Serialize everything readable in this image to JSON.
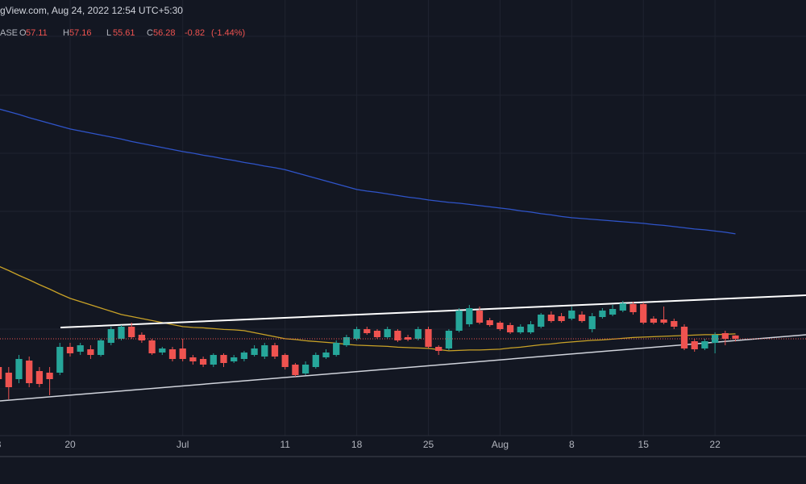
{
  "chart_data": {
    "type": "candlestick",
    "header": "gView.com, Aug 24, 2022 12:54 UTC+5:30",
    "symbol": "ASE",
    "ohlc_labels": [
      "O",
      "H",
      "L",
      "C"
    ],
    "change": -0.82,
    "change_pct": {
      "value": -1.44,
      "label": "(-1.44%)"
    },
    "categories": [
      "3",
      null,
      null,
      null,
      null,
      null,
      null,
      "20",
      null,
      null,
      null,
      null,
      null,
      null,
      null,
      null,
      null,
      null,
      "Jul",
      null,
      null,
      null,
      null,
      null,
      null,
      null,
      null,
      null,
      "11",
      null,
      null,
      null,
      null,
      null,
      null,
      "18",
      null,
      null,
      null,
      null,
      null,
      null,
      "25",
      null,
      null,
      null,
      null,
      null,
      null,
      "Aug",
      null,
      null,
      null,
      null,
      null,
      null,
      "8",
      null,
      null,
      null,
      null,
      null,
      null,
      "15",
      null,
      null,
      null,
      null,
      null,
      null,
      "22",
      null,
      null
    ],
    "open": [
      49.28,
      47.88,
      46.28,
      50.88,
      48.28,
      47.88,
      47.88,
      54.28,
      53.08,
      53.68,
      52.28,
      55.28,
      56.28,
      59.28,
      57.28,
      55.88,
      52.88,
      53.68,
      53.88,
      51.68,
      51.28,
      49.88,
      52.28,
      50.68,
      51.28,
      52.28,
      51.88,
      54.68,
      52.28,
      49.88,
      47.68,
      49.28,
      51.68,
      52.28,
      54.68,
      56.28,
      58.68,
      58.28,
      56.68,
      58.28,
      56.68,
      56.28,
      58.68,
      54.28,
      53.88,
      58.28,
      59.88,
      63.28,
      60.88,
      60.28,
      59.68,
      57.88,
      57.88,
      59.28,
      62.28,
      61.88,
      61.28,
      62.28,
      58.68,
      61.68,
      62.28,
      63.28,
      64.88,
      64.88,
      61.28,
      61.08,
      60.68,
      59.28,
      55.68,
      53.88,
      55.28,
      57.68,
      57.11
    ],
    "high": [
      50.28,
      49.28,
      52.28,
      51.88,
      49.28,
      49.28,
      55.28,
      55.28,
      55.28,
      54.68,
      56.28,
      59.28,
      59.68,
      60.28,
      57.88,
      56.28,
      54.28,
      54.28,
      56.28,
      52.28,
      51.88,
      52.68,
      52.68,
      52.28,
      53.28,
      54.68,
      55.28,
      55.28,
      52.68,
      50.28,
      50.68,
      52.88,
      53.68,
      55.88,
      57.28,
      59.28,
      59.28,
      58.68,
      59.28,
      58.68,
      57.28,
      59.28,
      59.28,
      54.68,
      58.68,
      63.88,
      64.68,
      64.28,
      61.48,
      60.68,
      60.28,
      59.88,
      60.68,
      62.68,
      63.08,
      62.68,
      64.28,
      63.08,
      62.68,
      63.88,
      64.68,
      65.68,
      65.48,
      65.28,
      61.88,
      64.28,
      61.28,
      59.88,
      56.28,
      56.28,
      57.88,
      58.28,
      57.16
    ],
    "low": [
      40.68,
      41.28,
      45.28,
      44.28,
      44.28,
      42.28,
      47.28,
      51.88,
      52.28,
      51.28,
      51.88,
      54.68,
      55.88,
      56.28,
      55.28,
      52.28,
      52.28,
      50.68,
      50.68,
      49.88,
      49.28,
      49.28,
      49.28,
      50.28,
      50.68,
      51.88,
      51.28,
      51.28,
      48.68,
      46.88,
      47.28,
      48.88,
      51.28,
      51.88,
      54.28,
      55.88,
      57.28,
      56.28,
      56.28,
      55.48,
      55.68,
      55.88,
      53.88,
      52.28,
      53.48,
      57.88,
      59.28,
      59.88,
      59.28,
      58.28,
      57.48,
      57.48,
      57.48,
      58.88,
      60.28,
      60.28,
      60.88,
      60.28,
      57.88,
      61.28,
      61.88,
      62.88,
      62.28,
      59.88,
      59.88,
      59.88,
      58.68,
      53.48,
      53.08,
      53.48,
      52.68,
      54.68,
      55.61
    ],
    "close": [
      46.28,
      44.28,
      51.28,
      45.28,
      45.08,
      46.28,
      54.28,
      52.68,
      54.68,
      52.28,
      55.88,
      58.68,
      59.28,
      56.68,
      55.88,
      52.68,
      53.88,
      51.28,
      51.28,
      50.68,
      49.88,
      52.28,
      50.28,
      51.68,
      52.88,
      53.88,
      54.68,
      51.88,
      49.28,
      47.28,
      49.88,
      52.28,
      52.88,
      55.28,
      56.68,
      58.68,
      57.68,
      56.68,
      58.68,
      55.88,
      56.08,
      58.68,
      54.28,
      53.28,
      58.28,
      63.28,
      63.88,
      60.28,
      59.68,
      58.68,
      57.88,
      59.28,
      59.88,
      62.28,
      60.68,
      60.68,
      63.28,
      60.68,
      61.88,
      63.28,
      63.68,
      65.08,
      62.88,
      60.28,
      60.28,
      60.28,
      59.28,
      53.88,
      53.68,
      55.68,
      57.28,
      56.28,
      56.28
    ],
    "up_color": "#26a69a",
    "down_color": "#ef5350",
    "overlays": [
      {
        "color": "#2f54c9",
        "values": [
          113.3,
          112.6,
          111.9,
          111.1,
          110.4,
          109.7,
          109.0,
          108.3,
          107.8,
          107.3,
          106.8,
          106.3,
          105.8,
          105.2,
          104.7,
          104.2,
          103.7,
          103.2,
          102.7,
          102.3,
          101.8,
          101.4,
          100.9,
          100.5,
          100.0,
          99.6,
          99.1,
          98.7,
          98.2,
          97.5,
          96.8,
          96.1,
          95.4,
          94.7,
          94.0,
          93.3,
          92.9,
          92.6,
          92.2,
          91.8,
          91.4,
          91.1,
          90.7,
          90.4,
          90.1,
          89.9,
          89.6,
          89.3,
          89.0,
          88.7,
          88.4,
          88.0,
          87.7,
          87.3,
          87.0,
          86.6,
          86.3,
          86.1,
          85.9,
          85.7,
          85.5,
          85.3,
          85.1,
          84.9,
          84.6,
          84.4,
          84.1,
          83.8,
          83.5,
          83.3,
          83.0,
          82.7,
          82.3
        ]
      },
      {
        "color": "#c9a227",
        "values": [
          74.3,
          73.2,
          72.0,
          70.9,
          69.7,
          68.6,
          67.4,
          66.3,
          65.5,
          64.7,
          63.9,
          63.1,
          62.3,
          61.8,
          61.3,
          60.8,
          60.3,
          59.8,
          59.3,
          59.1,
          59.0,
          58.8,
          58.6,
          58.5,
          58.3,
          57.8,
          57.3,
          56.8,
          56.3,
          56.1,
          55.8,
          55.6,
          55.4,
          55.2,
          54.9,
          54.7,
          54.6,
          54.5,
          54.4,
          54.2,
          54.1,
          54.0,
          53.9,
          53.6,
          53.3,
          53.4,
          53.5,
          53.5,
          53.6,
          53.7,
          54.0,
          54.2,
          54.5,
          54.8,
          55.0,
          55.3,
          55.5,
          55.7,
          55.9,
          56.0,
          56.2,
          56.4,
          56.6,
          56.7,
          56.8,
          56.9,
          57.0,
          57.1,
          57.2,
          57.3,
          57.3,
          57.4,
          57.5
        ]
      }
    ],
    "ylim": [
      32.28,
      140.28
    ]
  }
}
